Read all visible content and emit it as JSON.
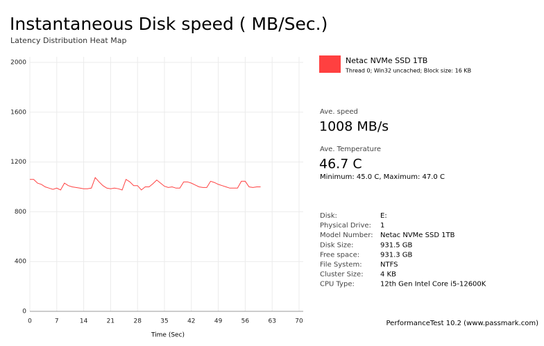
{
  "chart_data": {
    "type": "line",
    "title": "Instantaneous Disk speed ( MB/Sec.)",
    "subtitle": "Latency Distribution Heat Map",
    "x_label": "Time (Sec)",
    "x": [
      0,
      1,
      2,
      3,
      4,
      5,
      6,
      7,
      8,
      9,
      10,
      11,
      12,
      13,
      14,
      15,
      16,
      17,
      18,
      19,
      20,
      21,
      22,
      23,
      24,
      25,
      26,
      27,
      28,
      29,
      30,
      31,
      32,
      33,
      34,
      35,
      36,
      37,
      38,
      39,
      40,
      41,
      42,
      43,
      44,
      45,
      46,
      47,
      48,
      49,
      50,
      51,
      52,
      53,
      54,
      55,
      56,
      57,
      58,
      59,
      60
    ],
    "series": [
      {
        "name": "Netac NVMe SSD 1TB",
        "color": "#ff4040",
        "values": [
          1060,
          1060,
          1030,
          1020,
          1000,
          990,
          980,
          990,
          975,
          1030,
          1010,
          1000,
          995,
          990,
          985,
          985,
          990,
          1075,
          1040,
          1010,
          990,
          985,
          990,
          985,
          975,
          1060,
          1040,
          1010,
          1010,
          975,
          1000,
          1000,
          1025,
          1055,
          1030,
          1005,
          995,
          1000,
          990,
          990,
          1040,
          1040,
          1030,
          1015,
          1000,
          995,
          995,
          1045,
          1035,
          1020,
          1010,
          1000,
          990,
          990,
          990,
          1045,
          1045,
          1000,
          995,
          1000,
          1000
        ]
      }
    ],
    "xlim": [
      0,
      70
    ],
    "xticks": [
      0,
      7,
      14,
      21,
      28,
      35,
      42,
      49,
      56,
      63,
      70
    ],
    "ylim": [
      0,
      2000
    ],
    "yticks": [
      0,
      400,
      800,
      1200,
      1600,
      2000
    ],
    "grid": true
  },
  "legend_note": "Thread 0; Win32 uncached; Block size: 16 KB",
  "stats": [
    {
      "label": "Ave. speed",
      "value": "1008 MB/s"
    },
    {
      "label": "Ave. Temperature",
      "value": "46.7 C",
      "note": "Minimum: 45.0 C, Maximum: 47.0 C"
    }
  ],
  "info": [
    [
      "Disk:",
      "E:"
    ],
    [
      "Physical Drive:",
      "1"
    ],
    [
      "Model Number:",
      "Netac NVMe SSD 1TB"
    ],
    [
      "Disk Size:",
      "931.5 GB"
    ],
    [
      "Free space:",
      "931.3 GB"
    ],
    [
      "File System:",
      "NTFS"
    ],
    [
      "Cluster Size:",
      "4 KB"
    ],
    [
      "CPU Type:",
      "12th Gen Intel Core i5-12600K"
    ]
  ],
  "footer": "PerformanceTest 10.2 (www.passmark.com)"
}
